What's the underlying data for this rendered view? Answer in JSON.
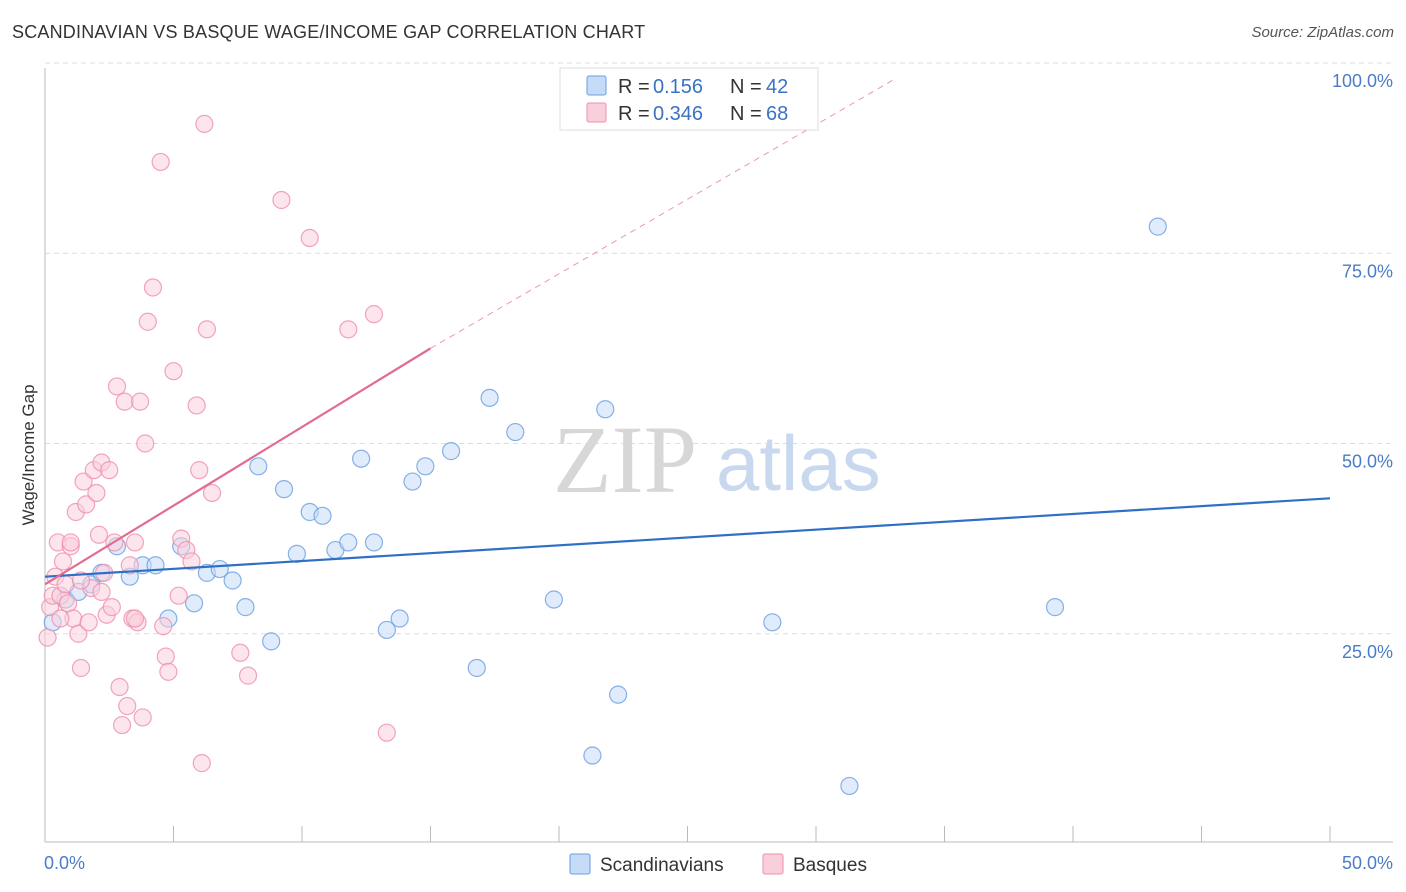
{
  "title": "SCANDINAVIAN VS BASQUE WAGE/INCOME GAP CORRELATION CHART",
  "source": "Source: ZipAtlas.com",
  "watermark": {
    "zip": "ZIP",
    "atlas": "atlas"
  },
  "colors": {
    "scandinavian": "#6a9fe0",
    "scandinavian_fill": "#c6dbf7",
    "scandinavian_line": "#2f6fc6",
    "basque": "#ee8fad",
    "basque_fill": "#f9cfdc",
    "basque_line": "#e26b93",
    "grid": "#dddddd",
    "axis_text": "#4a7cc7"
  },
  "legend_top": [
    {
      "r_label": "R = ",
      "r_value": "0.156",
      "n_label": "N = ",
      "n_value": "42"
    },
    {
      "r_label": "R = ",
      "r_value": "0.346",
      "n_label": "N = ",
      "n_value": "68"
    }
  ],
  "chart_data": {
    "type": "scatter",
    "title": "SCANDINAVIAN VS BASQUE WAGE/INCOME GAP CORRELATION CHART",
    "xlabel": "",
    "ylabel": "Wage/Income Gap",
    "xlim": [
      0,
      50
    ],
    "ylim": [
      0,
      100
    ],
    "x_tick_labels": [
      "0.0%",
      "50.0%"
    ],
    "y_tick_labels": [
      "25.0%",
      "50.0%",
      "75.0%",
      "100.0%"
    ],
    "y_ticks": [
      25,
      50,
      75,
      100
    ],
    "grid": true,
    "legend_position": "bottom-center",
    "series": [
      {
        "name": "Scandinavians",
        "points": [
          [
            0.3,
            26.5
          ],
          [
            0.8,
            29.5
          ],
          [
            1.3,
            30.5
          ],
          [
            1.8,
            31.5
          ],
          [
            2.2,
            33
          ],
          [
            2.8,
            36.5
          ],
          [
            3.3,
            32.5
          ],
          [
            3.8,
            34
          ],
          [
            4.3,
            34
          ],
          [
            4.8,
            27
          ],
          [
            5.3,
            36.5
          ],
          [
            5.8,
            29
          ],
          [
            6.3,
            33
          ],
          [
            6.8,
            33.5
          ],
          [
            7.3,
            32
          ],
          [
            7.8,
            28.5
          ],
          [
            8.3,
            47
          ],
          [
            8.8,
            24
          ],
          [
            9.3,
            44
          ],
          [
            9.8,
            35.5
          ],
          [
            10.3,
            41
          ],
          [
            10.8,
            40.5
          ],
          [
            11.3,
            36
          ],
          [
            11.8,
            37
          ],
          [
            12.3,
            48
          ],
          [
            12.8,
            37
          ],
          [
            13.3,
            25.5
          ],
          [
            13.8,
            27
          ],
          [
            14.3,
            45
          ],
          [
            14.8,
            47
          ],
          [
            15.8,
            49
          ],
          [
            16.8,
            20.5
          ],
          [
            17.3,
            56
          ],
          [
            18.3,
            51.5
          ],
          [
            19.8,
            29.5
          ],
          [
            21.3,
            9
          ],
          [
            21.8,
            54.5
          ],
          [
            22.3,
            17
          ],
          [
            28.3,
            26.5
          ],
          [
            31.3,
            5
          ],
          [
            39.3,
            28.5
          ],
          [
            43.3,
            78.5
          ]
        ]
      },
      {
        "name": "Basques",
        "points": [
          [
            0.1,
            24.5
          ],
          [
            0.2,
            28.5
          ],
          [
            0.3,
            30
          ],
          [
            0.4,
            32.5
          ],
          [
            0.5,
            37
          ],
          [
            0.6,
            30
          ],
          [
            0.7,
            34.5
          ],
          [
            0.8,
            31.5
          ],
          [
            0.9,
            29
          ],
          [
            1.0,
            36.5
          ],
          [
            1.1,
            27
          ],
          [
            1.2,
            41
          ],
          [
            1.3,
            25
          ],
          [
            1.4,
            20.5
          ],
          [
            1.5,
            45
          ],
          [
            1.6,
            42
          ],
          [
            1.7,
            26.5
          ],
          [
            1.8,
            31
          ],
          [
            1.9,
            46.5
          ],
          [
            2.0,
            43.5
          ],
          [
            2.1,
            38
          ],
          [
            2.2,
            47.5
          ],
          [
            2.3,
            33
          ],
          [
            2.4,
            27.5
          ],
          [
            2.5,
            46.5
          ],
          [
            2.6,
            28.5
          ],
          [
            2.7,
            37
          ],
          [
            2.8,
            57.5
          ],
          [
            2.9,
            18
          ],
          [
            3.0,
            13
          ],
          [
            3.1,
            55.5
          ],
          [
            3.2,
            15.5
          ],
          [
            3.3,
            34
          ],
          [
            3.4,
            27
          ],
          [
            3.5,
            37
          ],
          [
            3.6,
            26.5
          ],
          [
            3.7,
            55.5
          ],
          [
            3.8,
            14
          ],
          [
            3.9,
            50
          ],
          [
            4.0,
            66
          ],
          [
            4.2,
            70.5
          ],
          [
            4.5,
            87
          ],
          [
            4.6,
            26
          ],
          [
            4.7,
            22
          ],
          [
            4.8,
            20
          ],
          [
            5.0,
            59.5
          ],
          [
            5.2,
            30
          ],
          [
            5.3,
            37.5
          ],
          [
            5.5,
            36
          ],
          [
            5.7,
            34.5
          ],
          [
            5.9,
            55
          ],
          [
            6.0,
            46.5
          ],
          [
            6.1,
            8
          ],
          [
            6.2,
            92
          ],
          [
            6.3,
            65
          ],
          [
            6.5,
            43.5
          ],
          [
            7.6,
            22.5
          ],
          [
            7.9,
            19.5
          ],
          [
            9.2,
            82
          ],
          [
            10.3,
            77
          ],
          [
            11.8,
            65
          ],
          [
            12.8,
            67
          ],
          [
            13.3,
            12
          ],
          [
            1.0,
            37
          ],
          [
            0.6,
            27
          ],
          [
            2.2,
            30.5
          ],
          [
            1.4,
            32
          ],
          [
            3.5,
            27
          ]
        ]
      }
    ],
    "trend_lines": [
      {
        "series": "Scandinavians",
        "x": [
          0,
          50
        ],
        "y": [
          32.5,
          42.8
        ]
      },
      {
        "series": "Basques",
        "x": [
          0,
          15
        ],
        "y": [
          31.5,
          62.5
        ],
        "dashed_extension_to": [
          33,
          100
        ]
      }
    ]
  },
  "legend_bottom": [
    {
      "label": "Scandinavians"
    },
    {
      "label": "Basques"
    }
  ]
}
